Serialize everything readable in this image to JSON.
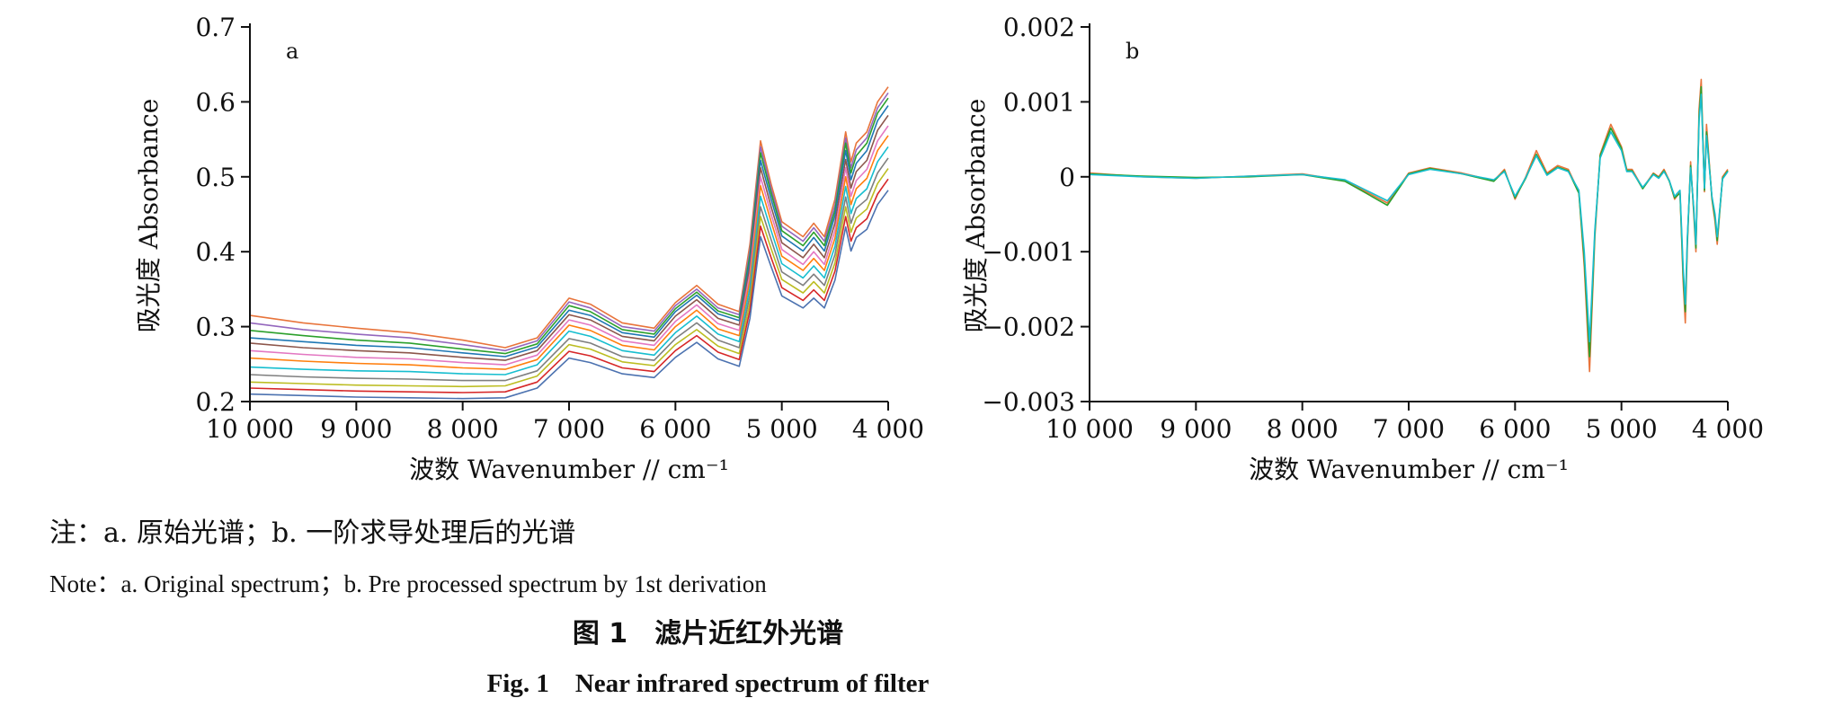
{
  "chart_data": [
    {
      "type": "line",
      "panel_label": "a",
      "xlabel": "波数 Wavenumber // cm⁻¹",
      "ylabel": "吸光度 Absorbance",
      "xlim": [
        10000,
        4000
      ],
      "ylim": [
        0.2,
        0.7
      ],
      "x_ticks": [
        10000,
        9000,
        8000,
        7000,
        6000,
        5000,
        4000
      ],
      "x_tick_labels": [
        "10 000",
        "9 000",
        "8 000",
        "7 000",
        "6 000",
        "5 000",
        "4 000"
      ],
      "y_ticks": [
        0.2,
        0.3,
        0.4,
        0.5,
        0.6,
        0.7
      ],
      "y_tick_labels": [
        "0.2",
        "0.3",
        "0.4",
        "0.5",
        "0.6",
        "0.7"
      ],
      "grid": false,
      "legend": "none",
      "x": [
        10000,
        9500,
        9000,
        8500,
        8000,
        7600,
        7300,
        7000,
        6800,
        6500,
        6200,
        6000,
        5800,
        5600,
        5400,
        5300,
        5200,
        5100,
        5000,
        4800,
        4700,
        4600,
        4500,
        4400,
        4350,
        4300,
        4200,
        4100,
        4000
      ],
      "series": [
        {
          "color": "#e8743b",
          "values": [
            0.315,
            0.305,
            0.298,
            0.292,
            0.282,
            0.272,
            0.285,
            0.338,
            0.33,
            0.305,
            0.298,
            0.332,
            0.355,
            0.33,
            0.32,
            0.41,
            0.548,
            0.49,
            0.44,
            0.42,
            0.438,
            0.42,
            0.47,
            0.56,
            0.52,
            0.545,
            0.56,
            0.6,
            0.62
          ]
        },
        {
          "color": "#9467bd",
          "values": [
            0.305,
            0.296,
            0.29,
            0.285,
            0.276,
            0.268,
            0.281,
            0.333,
            0.325,
            0.3,
            0.294,
            0.328,
            0.35,
            0.325,
            0.316,
            0.402,
            0.54,
            0.484,
            0.434,
            0.414,
            0.432,
            0.414,
            0.462,
            0.552,
            0.512,
            0.536,
            0.552,
            0.592,
            0.612
          ]
        },
        {
          "color": "#2ca02c",
          "values": [
            0.295,
            0.288,
            0.282,
            0.278,
            0.27,
            0.264,
            0.277,
            0.328,
            0.32,
            0.296,
            0.29,
            0.324,
            0.346,
            0.321,
            0.312,
            0.395,
            0.532,
            0.478,
            0.428,
            0.408,
            0.426,
            0.408,
            0.455,
            0.545,
            0.505,
            0.528,
            0.545,
            0.585,
            0.605
          ]
        },
        {
          "color": "#1f77b4",
          "values": [
            0.285,
            0.28,
            0.275,
            0.272,
            0.265,
            0.26,
            0.273,
            0.322,
            0.315,
            0.292,
            0.286,
            0.32,
            0.342,
            0.317,
            0.308,
            0.388,
            0.522,
            0.47,
            0.421,
            0.401,
            0.419,
            0.401,
            0.448,
            0.535,
            0.496,
            0.518,
            0.535,
            0.575,
            0.595
          ]
        },
        {
          "color": "#8c564b",
          "values": [
            0.278,
            0.272,
            0.268,
            0.265,
            0.259,
            0.255,
            0.268,
            0.316,
            0.309,
            0.287,
            0.281,
            0.314,
            0.336,
            0.311,
            0.302,
            0.38,
            0.512,
            0.46,
            0.412,
            0.392,
            0.41,
            0.392,
            0.438,
            0.523,
            0.485,
            0.507,
            0.522,
            0.562,
            0.582
          ]
        },
        {
          "color": "#e377c2",
          "values": [
            0.268,
            0.263,
            0.259,
            0.257,
            0.252,
            0.249,
            0.262,
            0.309,
            0.302,
            0.281,
            0.275,
            0.307,
            0.329,
            0.304,
            0.295,
            0.371,
            0.5,
            0.45,
            0.403,
            0.383,
            0.4,
            0.383,
            0.428,
            0.512,
            0.474,
            0.495,
            0.51,
            0.548,
            0.568
          ]
        },
        {
          "color": "#ff7f0e",
          "values": [
            0.258,
            0.254,
            0.251,
            0.249,
            0.245,
            0.243,
            0.256,
            0.302,
            0.295,
            0.275,
            0.269,
            0.3,
            0.322,
            0.297,
            0.288,
            0.362,
            0.488,
            0.44,
            0.394,
            0.375,
            0.391,
            0.375,
            0.418,
            0.5,
            0.463,
            0.484,
            0.498,
            0.535,
            0.555
          ]
        },
        {
          "color": "#17becf",
          "values": [
            0.246,
            0.243,
            0.241,
            0.24,
            0.237,
            0.236,
            0.249,
            0.294,
            0.287,
            0.268,
            0.262,
            0.292,
            0.314,
            0.29,
            0.28,
            0.352,
            0.474,
            0.428,
            0.384,
            0.365,
            0.381,
            0.365,
            0.407,
            0.487,
            0.451,
            0.471,
            0.484,
            0.52,
            0.54
          ]
        },
        {
          "color": "#7f7f7f",
          "values": [
            0.236,
            0.233,
            0.231,
            0.23,
            0.228,
            0.228,
            0.241,
            0.284,
            0.278,
            0.26,
            0.255,
            0.284,
            0.305,
            0.282,
            0.272,
            0.342,
            0.46,
            0.416,
            0.373,
            0.355,
            0.37,
            0.355,
            0.396,
            0.473,
            0.438,
            0.458,
            0.47,
            0.505,
            0.525
          ]
        },
        {
          "color": "#bcbd22",
          "values": [
            0.226,
            0.224,
            0.222,
            0.221,
            0.22,
            0.221,
            0.234,
            0.276,
            0.27,
            0.253,
            0.248,
            0.276,
            0.296,
            0.274,
            0.264,
            0.332,
            0.447,
            0.404,
            0.363,
            0.345,
            0.36,
            0.345,
            0.385,
            0.46,
            0.426,
            0.445,
            0.457,
            0.491,
            0.511
          ]
        },
        {
          "color": "#d62728",
          "values": [
            0.218,
            0.216,
            0.214,
            0.213,
            0.212,
            0.213,
            0.226,
            0.267,
            0.261,
            0.245,
            0.24,
            0.268,
            0.288,
            0.266,
            0.256,
            0.322,
            0.434,
            0.392,
            0.352,
            0.335,
            0.349,
            0.335,
            0.374,
            0.447,
            0.414,
            0.432,
            0.444,
            0.477,
            0.497
          ]
        },
        {
          "color": "#4c72b0",
          "values": [
            0.21,
            0.208,
            0.206,
            0.205,
            0.204,
            0.205,
            0.218,
            0.258,
            0.252,
            0.237,
            0.232,
            0.259,
            0.279,
            0.257,
            0.247,
            0.311,
            0.42,
            0.38,
            0.341,
            0.325,
            0.338,
            0.325,
            0.362,
            0.433,
            0.401,
            0.419,
            0.43,
            0.463,
            0.482
          ]
        }
      ]
    },
    {
      "type": "line",
      "panel_label": "b",
      "xlabel": "波数 Wavenumber // cm⁻¹",
      "ylabel": "吸光度 Absorbance",
      "xlim": [
        10000,
        4000
      ],
      "ylim": [
        -0.003,
        0.002
      ],
      "x_ticks": [
        10000,
        9000,
        8000,
        7000,
        6000,
        5000,
        4000
      ],
      "x_tick_labels": [
        "10 000",
        "9 000",
        "8 000",
        "7 000",
        "6 000",
        "5 000",
        "4 000"
      ],
      "y_ticks": [
        -0.003,
        -0.002,
        -0.001,
        0,
        0.001,
        0.002
      ],
      "y_tick_labels": [
        "−0.003",
        "−0.002",
        "−0.001",
        "0",
        "0.001",
        "0.002"
      ],
      "grid": false,
      "legend": "none",
      "x": [
        10000,
        9500,
        9000,
        8500,
        8000,
        7600,
        7400,
        7200,
        7100,
        7000,
        6800,
        6500,
        6200,
        6100,
        6000,
        5900,
        5800,
        5700,
        5600,
        5500,
        5400,
        5350,
        5300,
        5250,
        5200,
        5100,
        5000,
        4950,
        4900,
        4800,
        4700,
        4650,
        4600,
        4550,
        4500,
        4450,
        4420,
        4400,
        4380,
        4350,
        4320,
        4300,
        4270,
        4250,
        4220,
        4200,
        4170,
        4150,
        4120,
        4100,
        4050,
        4000
      ],
      "series": [
        {
          "color": "#e8743b",
          "values": [
            5e-05,
            0.0,
            -2e-05,
            1e-05,
            4e-05,
            -5e-05,
            -0.0002,
            -0.00035,
            -0.00015,
            5e-05,
            0.00012,
            5e-05,
            -5e-05,
            0.0001,
            -0.0003,
            0.0,
            0.00035,
            5e-05,
            0.00015,
            0.0001,
            -0.0002,
            -0.0012,
            -0.0026,
            -0.0008,
            0.0003,
            0.0007,
            0.0004,
            0.0001,
            0.0001,
            -0.00015,
            5e-05,
            0.0,
            0.0001,
            -5e-05,
            -0.0003,
            -0.0002,
            -0.0014,
            -0.00195,
            -0.0009,
            0.0002,
            -0.0005,
            -0.001,
            0.0009,
            0.0013,
            -0.0002,
            0.0007,
            0.0001,
            -0.0003,
            -0.0006,
            -0.0009,
            0.0,
            0.0001
          ]
        },
        {
          "color": "#2ca02c",
          "values": [
            4e-05,
            1e-05,
            -1e-05,
            0.0,
            3e-05,
            -6e-05,
            -0.00022,
            -0.00038,
            -0.00017,
            4e-05,
            0.00011,
            4e-05,
            -6e-05,
            8e-05,
            -0.00028,
            -2e-05,
            0.0003,
            3e-05,
            0.00013,
            8e-05,
            -0.00022,
            -0.0011,
            -0.0024,
            -0.00075,
            0.00028,
            0.00065,
            0.00038,
            8e-05,
            8e-05,
            -0.00016,
            4e-05,
            -1e-05,
            8e-05,
            -6e-05,
            -0.00028,
            -0.00022,
            -0.0013,
            -0.0018,
            -0.00085,
            0.00015,
            -0.00045,
            -0.00095,
            0.0008,
            0.0012,
            -0.00018,
            0.0006,
            8e-05,
            -0.00028,
            -0.00055,
            -0.00085,
            -2e-05,
            8e-05
          ]
        },
        {
          "color": "#17becf",
          "values": [
            3e-05,
            0.0,
            -2e-05,
            1e-05,
            3e-05,
            -4e-05,
            -0.00018,
            -0.00032,
            -0.00014,
            3e-05,
            0.0001,
            4e-05,
            -4e-05,
            7e-05,
            -0.00026,
            -1e-05,
            0.00028,
            2e-05,
            0.00012,
            7e-05,
            -0.00018,
            -0.001,
            -0.0022,
            -0.0007,
            0.00025,
            0.0006,
            0.00035,
            7e-05,
            7e-05,
            -0.00014,
            3e-05,
            -2e-05,
            7e-05,
            -5e-05,
            -0.00026,
            -0.00018,
            -0.0012,
            -0.0017,
            -0.0008,
            0.00012,
            -0.00042,
            -0.0009,
            0.00075,
            0.0011,
            -0.00015,
            0.00055,
            6e-05,
            -0.00026,
            -0.0005,
            -0.0008,
            -3e-05,
            7e-05
          ]
        }
      ]
    }
  ],
  "caption": {
    "note_cn": "注：a. 原始光谱；b. 一阶求导处理后的光谱",
    "note_en": "Note：a. Original spectrum；b. Pre processed spectrum by 1st derivation",
    "fig_cn": "图 1　滤片近红外光谱",
    "fig_en": "Fig. 1　Near infrared spectrum of filter"
  }
}
